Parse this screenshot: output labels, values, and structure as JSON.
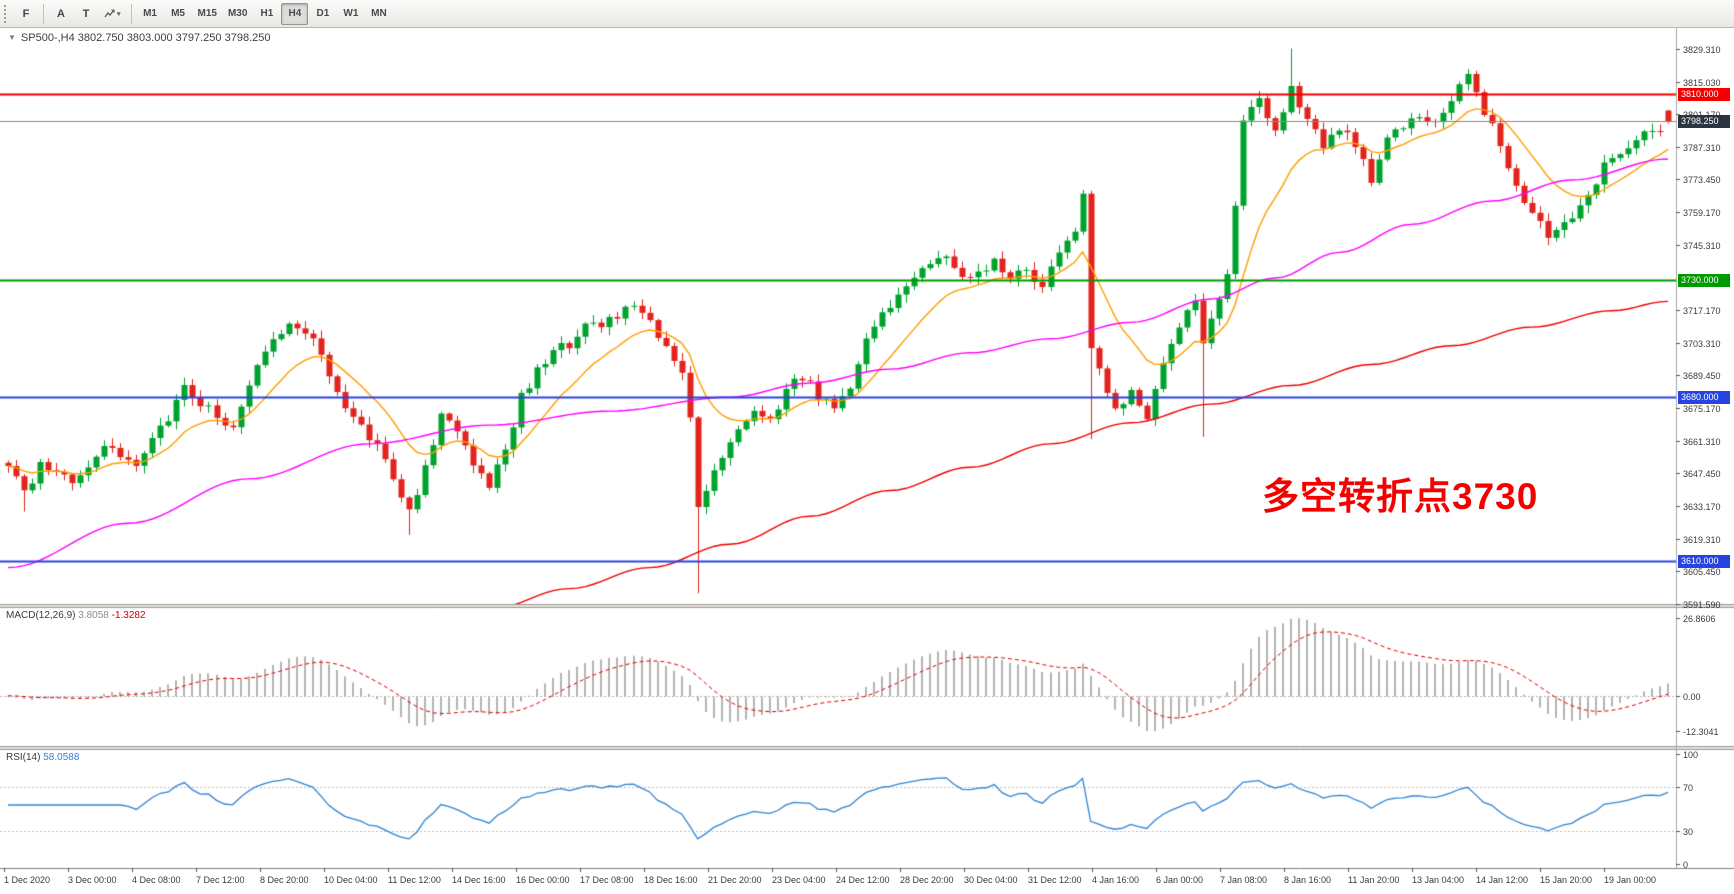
{
  "toolbar": {
    "file_button": "F",
    "label_tool": "A",
    "text_tool": "T",
    "timeframes": [
      "M1",
      "M5",
      "M15",
      "M30",
      "H1",
      "H4",
      "D1",
      "W1",
      "MN"
    ],
    "active_timeframe": "H4"
  },
  "chart": {
    "title": "SP500-,H4  3802.750 3803.000 3797.250 3798.250"
  },
  "colors": {
    "up": "#00a22e",
    "down": "#e3231d",
    "ma_fast": "#ff9e00",
    "ma_medium": "#ff00ff",
    "ma_slow": "#ee0000",
    "macd_hist": "#b4b4b4",
    "macd_signal": "#e00000",
    "rsi": "#2f86d5",
    "bid_line": "#8a8a8a",
    "bid_badge": "#2b3440",
    "axis_text": "#3a3a3a"
  },
  "chart_data": {
    "type": "candlestick",
    "symbol": "SP500-",
    "timeframe": "H4",
    "ohlc": {
      "open": 3802.75,
      "high": 3803.0,
      "low": 3797.25,
      "close": 3798.25
    },
    "price_axis": {
      "p_top": 3838.1,
      "p_bottom": 3591.4,
      "ticks": [
        3829.31,
        3815.03,
        3801.17,
        3787.31,
        3773.45,
        3759.17,
        3745.31,
        3717.17,
        3703.31,
        3689.45,
        3675.17,
        3661.31,
        3647.45,
        3633.17,
        3619.31,
        3605.45,
        3591.59
      ]
    },
    "hlines": [
      {
        "price": 3810.0,
        "label": "3810.000",
        "color": "#f20000"
      },
      {
        "price": 3730.0,
        "label": "3730.000",
        "color": "#009a00"
      },
      {
        "price": 3680.0,
        "label": "3680.000",
        "color": "#2744e0"
      },
      {
        "price": 3610.0,
        "label": "3610.000",
        "color": "#2744e0"
      }
    ],
    "current_price": {
      "value": 3798.25,
      "label": "3798.250"
    },
    "candles": {
      "count": 208,
      "seed": 9,
      "close_path": [
        [
          0,
          3652
        ],
        [
          1,
          3645
        ],
        [
          2,
          3638
        ],
        [
          3,
          3642
        ],
        [
          4,
          3650
        ],
        [
          6,
          3646
        ],
        [
          8,
          3644
        ],
        [
          10,
          3652
        ],
        [
          12,
          3660
        ],
        [
          14,
          3656
        ],
        [
          16,
          3650
        ],
        [
          18,
          3662
        ],
        [
          20,
          3672
        ],
        [
          22,
          3684
        ],
        [
          24,
          3678
        ],
        [
          26,
          3672
        ],
        [
          28,
          3668
        ],
        [
          30,
          3684
        ],
        [
          31,
          3692
        ],
        [
          33,
          3706
        ],
        [
          35,
          3713
        ],
        [
          37,
          3709
        ],
        [
          39,
          3698
        ],
        [
          41,
          3680
        ],
        [
          43,
          3672
        ],
        [
          45,
          3664
        ],
        [
          47,
          3652
        ],
        [
          48,
          3645
        ],
        [
          50,
          3630
        ],
        [
          52,
          3650
        ],
        [
          54,
          3671
        ],
        [
          56,
          3667
        ],
        [
          58,
          3652
        ],
        [
          60,
          3643
        ],
        [
          62,
          3658
        ],
        [
          64,
          3680
        ],
        [
          66,
          3692
        ],
        [
          69,
          3701
        ],
        [
          72,
          3710
        ],
        [
          75,
          3713
        ],
        [
          78,
          3719
        ],
        [
          80,
          3711
        ],
        [
          82,
          3701
        ],
        [
          84,
          3688
        ],
        [
          85,
          3672
        ],
        [
          86,
          3634
        ],
        [
          87,
          3641
        ],
        [
          89,
          3655
        ],
        [
          91,
          3668
        ],
        [
          93,
          3673
        ],
        [
          95,
          3670
        ],
        [
          97,
          3682
        ],
        [
          99,
          3689
        ],
        [
          101,
          3681
        ],
        [
          103,
          3677
        ],
        [
          105,
          3684
        ],
        [
          107,
          3703
        ],
        [
          109,
          3717
        ],
        [
          111,
          3724
        ],
        [
          113,
          3732
        ],
        [
          115,
          3737
        ],
        [
          117,
          3741
        ],
        [
          119,
          3729
        ],
        [
          121,
          3734
        ],
        [
          123,
          3739
        ],
        [
          125,
          3731
        ],
        [
          127,
          3735
        ],
        [
          129,
          3727
        ],
        [
          131,
          3740
        ],
        [
          133,
          3752
        ],
        [
          134,
          3768
        ],
        [
          135,
          3702
        ],
        [
          136,
          3690
        ],
        [
          138,
          3673
        ],
        [
          140,
          3681
        ],
        [
          142,
          3669
        ],
        [
          144,
          3696
        ],
        [
          146,
          3711
        ],
        [
          148,
          3723
        ],
        [
          149,
          3704
        ],
        [
          150,
          3713
        ],
        [
          152,
          3731
        ],
        [
          153,
          3762
        ],
        [
          154,
          3800
        ],
        [
          156,
          3806
        ],
        [
          158,
          3796
        ],
        [
          160,
          3811
        ],
        [
          162,
          3801
        ],
        [
          164,
          3789
        ],
        [
          166,
          3796
        ],
        [
          168,
          3786
        ],
        [
          170,
          3773
        ],
        [
          172,
          3791
        ],
        [
          174,
          3796
        ],
        [
          176,
          3801
        ],
        [
          178,
          3796
        ],
        [
          180,
          3809
        ],
        [
          182,
          3816
        ],
        [
          184,
          3801
        ],
        [
          186,
          3789
        ],
        [
          188,
          3771
        ],
        [
          190,
          3759
        ],
        [
          192,
          3748
        ],
        [
          194,
          3753
        ],
        [
          196,
          3763
        ],
        [
          198,
          3773
        ],
        [
          200,
          3783
        ],
        [
          202,
          3789
        ],
        [
          204,
          3793
        ],
        [
          206,
          3796
        ],
        [
          207,
          3798
        ]
      ],
      "special_wicks": [
        {
          "i": 2,
          "low": 3631
        },
        {
          "i": 50,
          "low": 3621
        },
        {
          "i": 86,
          "low": 3596
        },
        {
          "i": 135,
          "low": 3662
        },
        {
          "i": 149,
          "low": 3663
        },
        {
          "i": 160,
          "high": 3829.3
        },
        {
          "i": 182,
          "high": 3820.5
        }
      ]
    },
    "moving_averages": [
      {
        "name": "ma-fast",
        "type": "ema",
        "period": 12
      },
      {
        "name": "ma-medium",
        "type": "path",
        "path": [
          [
            0,
            3607
          ],
          [
            15,
            3626
          ],
          [
            30,
            3645
          ],
          [
            45,
            3660
          ],
          [
            60,
            3668
          ],
          [
            75,
            3674
          ],
          [
            90,
            3680
          ],
          [
            100,
            3686
          ],
          [
            110,
            3692
          ],
          [
            120,
            3699
          ],
          [
            130,
            3705
          ],
          [
            140,
            3712
          ],
          [
            150,
            3722
          ],
          [
            158,
            3731
          ],
          [
            166,
            3742
          ],
          [
            175,
            3754
          ],
          [
            185,
            3764
          ],
          [
            195,
            3773
          ],
          [
            207,
            3782
          ]
        ]
      },
      {
        "name": "ma-slow",
        "type": "path",
        "path": [
          [
            50,
            3582
          ],
          [
            60,
            3589
          ],
          [
            70,
            3598
          ],
          [
            80,
            3607
          ],
          [
            90,
            3617
          ],
          [
            100,
            3629
          ],
          [
            110,
            3640
          ],
          [
            120,
            3650
          ],
          [
            130,
            3660
          ],
          [
            140,
            3669
          ],
          [
            150,
            3677
          ],
          [
            160,
            3685
          ],
          [
            170,
            3694
          ],
          [
            180,
            3702
          ],
          [
            190,
            3710
          ],
          [
            200,
            3717
          ],
          [
            207,
            3721
          ]
        ]
      }
    ],
    "macd": {
      "label": "MACD(12,26,9)",
      "value_main": "3.8058",
      "value_signal": "-1.3282",
      "fast": 12,
      "slow": 26,
      "signal_period": 9,
      "range": [
        -16,
        29
      ],
      "axis_ticks": [
        {
          "v": 26.8606,
          "label": "26.8606"
        },
        {
          "v": 0,
          "label": "0.00"
        },
        {
          "v": -12.3041,
          "label": "-12.3041"
        }
      ]
    },
    "rsi": {
      "label": "RSI(14)",
      "value": "58.0588",
      "period": 14,
      "levels": [
        70,
        30
      ],
      "axis_ticks": [
        100,
        70,
        30,
        0
      ]
    },
    "time_axis": [
      "1 Dec 2020",
      "3 Dec 00:00",
      "4 Dec 08:00",
      "7 Dec 12:00",
      "8 Dec 20:00",
      "10 Dec 04:00",
      "11 Dec 12:00",
      "14 Dec 16:00",
      "16 Dec 00:00",
      "17 Dec 08:00",
      "18 Dec 16:00",
      "21 Dec 20:00",
      "23 Dec 04:00",
      "24 Dec 12:00",
      "28 Dec 20:00",
      "30 Dec 04:00",
      "31 Dec 12:00",
      "4 Jan 16:00",
      "6 Jan 00:00",
      "7 Jan 08:00",
      "8 Jan 16:00",
      "11 Jan 20:00",
      "13 Jan 04:00",
      "14 Jan 12:00",
      "15 Jan 20:00",
      "19 Jan 00:00"
    ],
    "annotation": {
      "text": "多空转折点3730",
      "color": "#f50000"
    }
  }
}
